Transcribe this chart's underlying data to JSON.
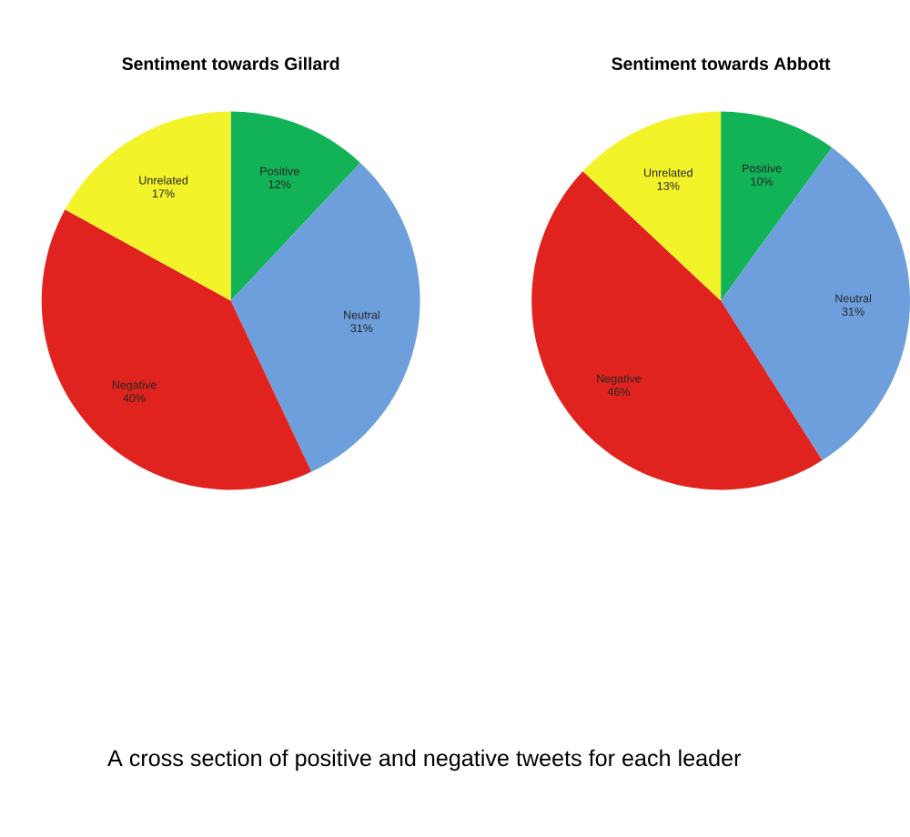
{
  "chart_data": [
    {
      "type": "pie",
      "title": "Sentiment towards Gillard",
      "categories": [
        "Positive",
        "Neutral",
        "Negative",
        "Unrelated"
      ],
      "values": [
        12,
        31,
        40,
        17
      ],
      "colors": [
        "#12b357",
        "#6c9fdc",
        "#e0231e",
        "#f3f32a"
      ],
      "value_labels": [
        "12%",
        "31%",
        "40%",
        "17%"
      ],
      "annotations": [
        "A cross section of positive and negative tweets for each leader"
      ]
    },
    {
      "type": "pie",
      "title": "Sentiment towards Abbott",
      "categories": [
        "Positive",
        "Neutral",
        "Negative",
        "Unrelated"
      ],
      "values": [
        10,
        31,
        46,
        13
      ],
      "colors": [
        "#12b357",
        "#6c9fdc",
        "#e0231e",
        "#f3f32a"
      ],
      "value_labels": [
        "10%",
        "31%",
        "46%",
        "13%"
      ]
    }
  ]
}
